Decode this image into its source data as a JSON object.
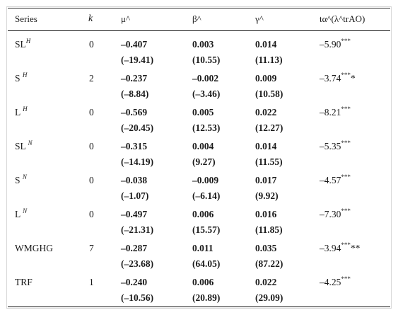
{
  "headers": {
    "series": "Series",
    "k": "k",
    "mu": "μ^",
    "beta": "β^",
    "gamma": "γ^",
    "t": "tα^(λ^trAO)"
  },
  "rows": [
    {
      "series": "SL",
      "sup": "H",
      "k": "0",
      "mu": "–0.407",
      "beta": "0.003",
      "gamma": "0.014",
      "t": "–5.90",
      "t_stars": "***",
      "t_extra": "",
      "mu_t": "(–19.41)",
      "beta_t": "(10.55)",
      "gamma_t": "(11.13)"
    },
    {
      "series": "S ",
      "sup": "H",
      "k": "2",
      "mu": "–0.237",
      "beta": "–0.002",
      "gamma": "0.009",
      "t": "–3.74",
      "t_stars": "***",
      "t_extra": "*",
      "mu_t": "(–8.84)",
      "beta_t": "(–3.46)",
      "gamma_t": "(10.58)"
    },
    {
      "series": "L ",
      "sup": "H",
      "k": "0",
      "mu": "–0.569",
      "beta": "0.005",
      "gamma": "0.022",
      "t": "–8.21",
      "t_stars": "***",
      "t_extra": "",
      "mu_t": "(–20.45)",
      "beta_t": "(12.53)",
      "gamma_t": "(12.27)"
    },
    {
      "series": "SL ",
      "sup": "N",
      "k": "0",
      "mu": "–0.315",
      "beta": "0.004",
      "gamma": "0.014",
      "t": "–5.35",
      "t_stars": "***",
      "t_extra": "",
      "mu_t": "(–14.19)",
      "beta_t": "(9.27)",
      "gamma_t": "(11.55)"
    },
    {
      "series": "S ",
      "sup": "N",
      "k": "0",
      "mu": "–0.038",
      "beta": "–0.009",
      "gamma": "0.017",
      "t": "–4.57",
      "t_stars": "***",
      "t_extra": "",
      "mu_t": "(–1.07)",
      "beta_t": "(–6.14)",
      "gamma_t": "(9.92)"
    },
    {
      "series": "L ",
      "sup": "N",
      "k": "0",
      "mu": "–0.497",
      "beta": "0.006",
      "gamma": "0.016",
      "t": "–7.30",
      "t_stars": "***",
      "t_extra": "",
      "mu_t": "(–21.31)",
      "beta_t": "(15.57)",
      "gamma_t": "(11.85)"
    },
    {
      "series": "WMGHG",
      "sup": "",
      "k": "7",
      "mu": "–0.287",
      "beta": "0.011",
      "gamma": "0.035",
      "t": "–3.94",
      "t_stars": "***",
      "t_extra": "**",
      "mu_t": "(–23.68)",
      "beta_t": "(64.05)",
      "gamma_t": "(87.22)"
    },
    {
      "series": "TRF",
      "sup": "",
      "k": "1",
      "mu": "–0.240",
      "beta": "0.006",
      "gamma": "0.022",
      "t": "–4.25",
      "t_stars": "***",
      "t_extra": "",
      "mu_t": "(–10.56)",
      "beta_t": "(20.89)",
      "gamma_t": "(29.09)"
    }
  ]
}
